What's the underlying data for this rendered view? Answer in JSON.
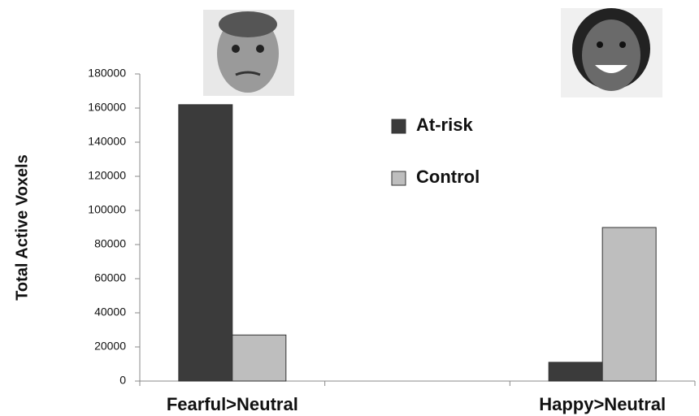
{
  "chart_data": {
    "type": "bar",
    "y_label": "Total Active Voxels",
    "categories": [
      "Fearful>Neutral",
      null,
      "Happy>Neutral"
    ],
    "series": [
      {
        "name": "At-risk",
        "color": "#3b3b3b",
        "values": [
          162000,
          null,
          11000
        ]
      },
      {
        "name": "Control",
        "color": "#bebebe",
        "values": [
          27000,
          null,
          90000
        ]
      }
    ],
    "ylim": [
      0,
      180000
    ],
    "yticks": [
      0,
      20000,
      40000,
      60000,
      80000,
      100000,
      120000,
      140000,
      160000,
      180000
    ]
  }
}
